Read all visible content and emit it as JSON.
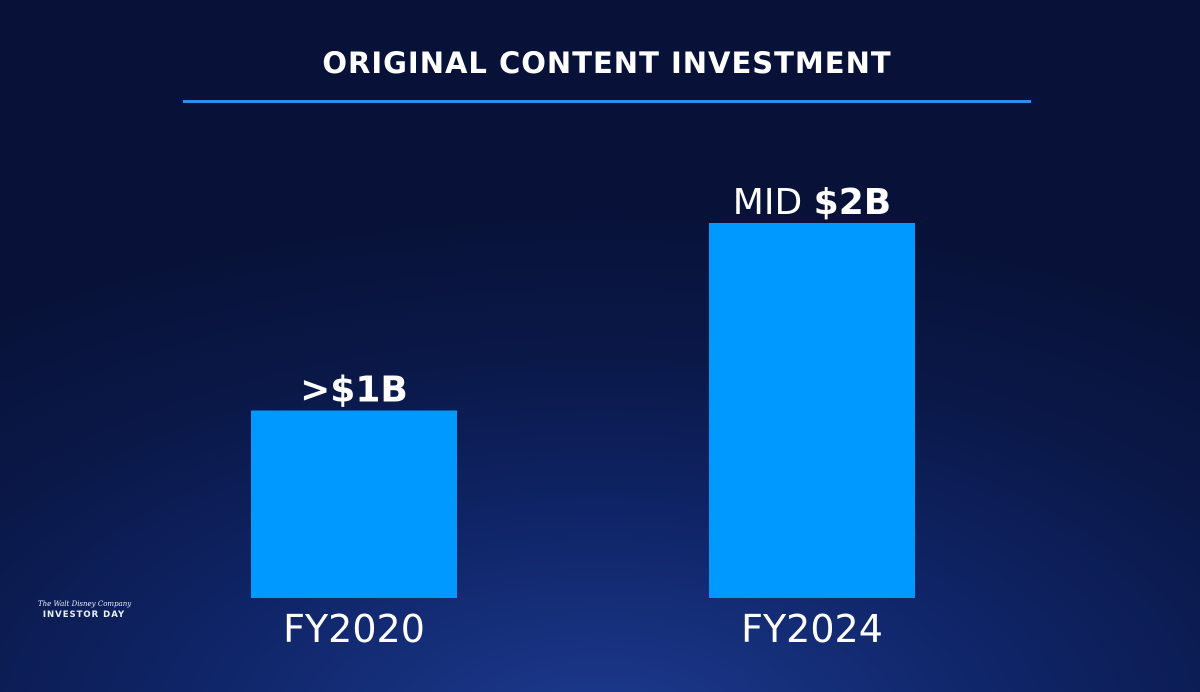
{
  "slide": {
    "title": "ORIGINAL CONTENT INVESTMENT",
    "accent_color": "#2f8fe6"
  },
  "branding": {
    "line1": "The Walt Disney Company",
    "line2": "INVESTOR DAY"
  },
  "chart_data": {
    "type": "bar",
    "title": "ORIGINAL CONTENT INVESTMENT",
    "categories": [
      "FY2020",
      "FY2024"
    ],
    "values": [
      1,
      2
    ],
    "unit": "$B",
    "data_labels": [
      {
        "prefix": "",
        "value": ">$1B"
      },
      {
        "prefix": "MID ",
        "value": "$2B"
      }
    ],
    "bar_color": "#0099ff",
    "grid": false,
    "legend": "none"
  }
}
